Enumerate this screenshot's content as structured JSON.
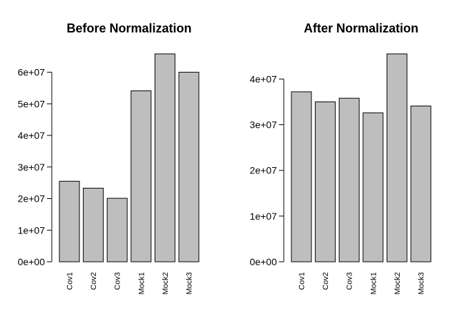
{
  "chart_data": [
    {
      "type": "bar",
      "title": "Before Normalization",
      "xlabel": "",
      "ylabel": "",
      "categories": [
        "Cov1",
        "Cov2",
        "Cov3",
        "Mock1",
        "Mock2",
        "Mock3"
      ],
      "values": [
        25500000,
        23300000,
        20100000,
        54100000,
        65800000,
        60000000
      ],
      "yticks": [
        0,
        10000000,
        20000000,
        30000000,
        40000000,
        50000000,
        60000000
      ],
      "ytick_labels": [
        "0e+00",
        "1e+07",
        "2e+07",
        "3e+07",
        "4e+07",
        "5e+07",
        "6e+07"
      ],
      "ylim": [
        0,
        65800000
      ],
      "bar_color": "#bebebe",
      "grid": false,
      "legend": "none"
    },
    {
      "type": "bar",
      "title": "After Normalization",
      "xlabel": "",
      "ylabel": "",
      "categories": [
        "Cov1",
        "Cov2",
        "Cov3",
        "Mock1",
        "Mock2",
        "Mock3"
      ],
      "values": [
        37200000,
        35000000,
        35800000,
        32600000,
        45500000,
        34100000
      ],
      "yticks": [
        0,
        10000000,
        20000000,
        30000000,
        40000000
      ],
      "ytick_labels": [
        "0e+00",
        "1e+07",
        "2e+07",
        "3e+07",
        "4e+07"
      ],
      "ylim": [
        0,
        45500000
      ],
      "bar_color": "#bebebe",
      "grid": false,
      "legend": "none"
    }
  ]
}
